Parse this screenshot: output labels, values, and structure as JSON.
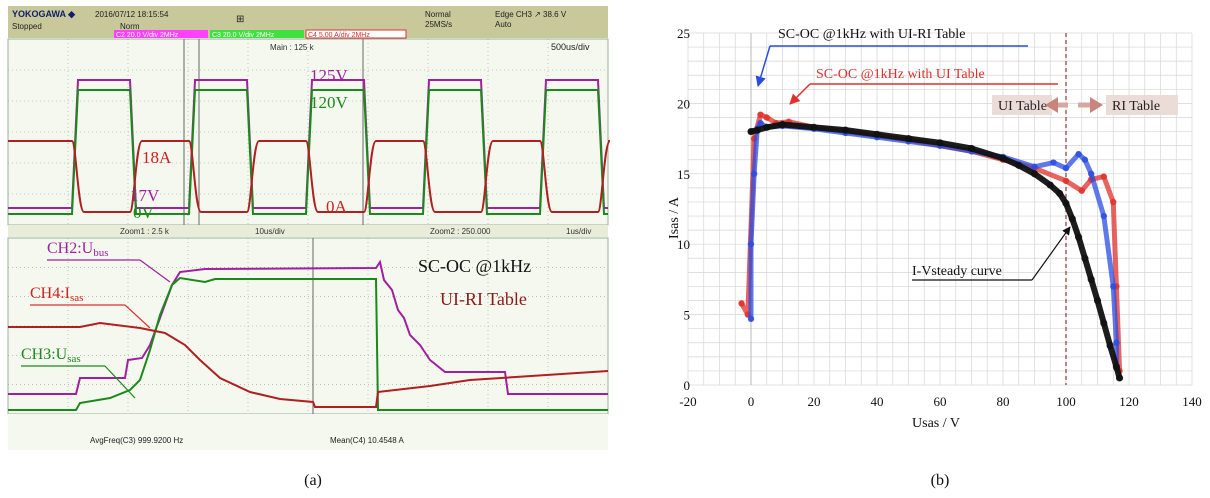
{
  "panel_a": {
    "caption": "(a)",
    "header": {
      "brand": "YOKOGAWA ◆",
      "status": "Stopped",
      "datetime": "2016/07/12 18:15:54",
      "coupling": "Norm",
      "mode_label": "Normal",
      "rate": "25MS/s",
      "trigger": "Edge CH3 ↗ 38.6 V",
      "trigger_mode": "Auto",
      "ch2_scale": "C2  20.0 V/div 2MHz",
      "ch3_scale": "C3  20.0 V/div 2MHz",
      "ch4_scale": "C4  5.00 A/div 2MHz"
    },
    "main_label": "Main : 125 k",
    "timebase_top": "500us/div",
    "zoom1_label": "Zoom1 : 2.5 k",
    "zoom1_div": "10us/div",
    "zoom2_label": "Zoom2 : 250.000",
    "zoom2_div": "1us/div",
    "footer_left": "AvgFreq(C3)   999.9200 Hz",
    "footer_right": "Mean(C4)   10.4548 A",
    "labels": {
      "v125": "125V",
      "v120": "120V",
      "a18": "18A",
      "v17": "17V",
      "v0": "0V",
      "a0": "0A",
      "ch2": "CH2:U",
      "ch2_sub": "bus",
      "ch4": "CH4:I",
      "ch4_sub": "sas",
      "ch3": "CH3:U",
      "ch3_sub": "sas",
      "title1": "SC-OC  @1kHz",
      "title2": "UI-RI Table"
    },
    "colors": {
      "ch2": "#a020a0",
      "ch3": "#1a8a1a",
      "ch4": "#b02020",
      "trace_bg": "#f4f8ee",
      "grid": "#8aa88a",
      "header": "#c8c89a"
    }
  },
  "panel_b": {
    "caption": "(b)",
    "annotations": {
      "ui_ri": "SC-OC @1kHz with UI-RI Table",
      "ui": "SC-OC @1kHz with UI Table",
      "ui_table": "UI Table",
      "ri_table": "RI Table",
      "iv_curve": "I-Vsteady curve"
    }
  },
  "chart_data": {
    "type": "scatter",
    "xlabel": "Usas / V",
    "ylabel": "Isas / A",
    "xlim": [
      -20,
      140
    ],
    "ylim": [
      0,
      25
    ],
    "xticks": [
      -20,
      0,
      20,
      40,
      60,
      80,
      100,
      120,
      140
    ],
    "yticks": [
      0,
      5,
      10,
      15,
      20,
      25
    ],
    "grid": true,
    "boundary_x": 100,
    "series": [
      {
        "name": "I-Vsteady curve",
        "color": "#111111",
        "x": [
          0,
          2,
          5,
          10,
          20,
          30,
          40,
          50,
          60,
          70,
          80,
          85,
          90,
          95,
          98,
          100,
          102,
          104,
          106,
          108,
          110,
          112,
          114,
          116,
          117
        ],
        "y": [
          18.0,
          18.1,
          18.3,
          18.5,
          18.3,
          18.1,
          17.8,
          17.5,
          17.2,
          16.8,
          16.1,
          15.6,
          15.0,
          14.2,
          13.6,
          12.9,
          11.8,
          10.5,
          9.0,
          7.5,
          6.0,
          4.4,
          2.8,
          1.3,
          0.5
        ]
      },
      {
        "name": "SC-OC @1kHz with UI-RI Table",
        "color": "#2a4de0",
        "x": [
          0,
          0,
          1,
          2,
          3,
          5,
          10,
          20,
          30,
          40,
          50,
          60,
          70,
          80,
          90,
          96,
          100,
          104,
          106,
          108,
          112,
          115,
          116,
          116
        ],
        "y": [
          4.7,
          10,
          15,
          18.2,
          18.6,
          18.3,
          18.4,
          18.2,
          17.9,
          17.6,
          17.3,
          17.0,
          16.6,
          16.2,
          15.5,
          15.8,
          15.4,
          16.4,
          16.0,
          15.0,
          12.0,
          7.0,
          3.0,
          1.2
        ]
      },
      {
        "name": "SC-OC @1kHz with UI Table",
        "color": "#e0302a",
        "x": [
          -3,
          -1,
          1,
          3,
          5,
          8,
          12,
          20,
          30,
          40,
          50,
          60,
          70,
          80,
          90,
          100,
          105,
          108,
          112,
          115,
          116,
          117
        ],
        "y": [
          5.8,
          5.0,
          17.5,
          19.2,
          19.0,
          18.6,
          18.7,
          18.3,
          18.0,
          17.7,
          17.4,
          17.0,
          16.6,
          16.0,
          15.4,
          14.5,
          13.8,
          14.6,
          14.8,
          13.0,
          7.0,
          1.0
        ]
      }
    ]
  }
}
